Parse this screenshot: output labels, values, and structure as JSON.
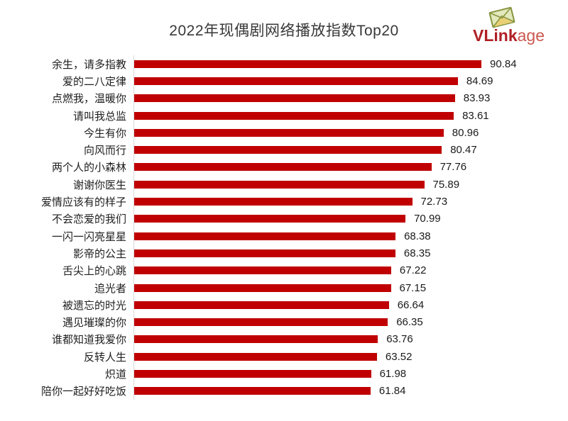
{
  "title": "2022年现偶剧网络播放指数Top20",
  "logo": {
    "text_bold": "VLink",
    "text_light": "age",
    "icon": "envelope-icon",
    "color_bold": "#b01f24",
    "color_light": "#cb5750"
  },
  "chart_data": {
    "type": "bar",
    "orientation": "horizontal",
    "title": "2022年现偶剧网络播放指数Top20",
    "categories": [
      "余生，请多指教",
      "爱的二八定律",
      "点燃我，温暖你",
      "请叫我总监",
      "今生有你",
      "向风而行",
      "两个人的小森林",
      "谢谢你医生",
      "爱情应该有的样子",
      "不会恋爱的我们",
      "一闪一闪亮星星",
      "影帝的公主",
      "舌尖上的心跳",
      "追光者",
      "被遗忘的时光",
      "遇见璀璨的你",
      "谁都知道我爱你",
      "反转人生",
      "炽道",
      "陪你一起好好吃饭"
    ],
    "values": [
      90.84,
      84.69,
      83.93,
      83.61,
      80.96,
      80.47,
      77.76,
      75.89,
      72.73,
      70.99,
      68.38,
      68.35,
      67.22,
      67.15,
      66.64,
      66.35,
      63.76,
      63.52,
      61.98,
      61.84
    ],
    "bar_color": "#c00000",
    "axis_line_color": "#d9d9d9",
    "label_color": "#1f1f1f",
    "value_labels": true,
    "xlim": [
      0,
      100
    ],
    "grid": false,
    "legend": false
  }
}
